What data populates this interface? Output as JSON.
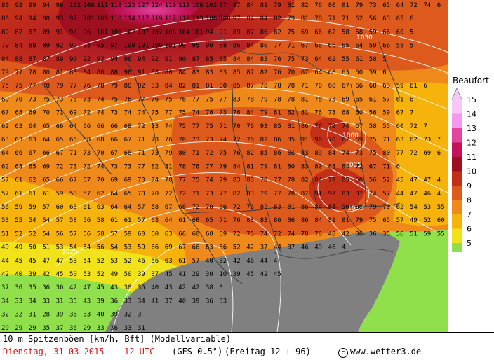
{
  "legend": {
    "title": "Beaufort",
    "levels": [
      {
        "label": "15",
        "color": "#f7c8f7"
      },
      {
        "label": "14",
        "color": "#f29aee"
      },
      {
        "label": "13",
        "color": "#e2449e"
      },
      {
        "label": "12",
        "color": "#c4125a"
      },
      {
        "label": "11",
        "color": "#9e1020"
      },
      {
        "label": "10",
        "color": "#c42f18"
      },
      {
        "label": "9",
        "color": "#dd5a1c"
      },
      {
        "label": "8",
        "color": "#ef8a1a"
      },
      {
        "label": "7",
        "color": "#f6b30c"
      },
      {
        "label": "6",
        "color": "#f2e21a"
      },
      {
        "label": "5",
        "color": "#8fe04a"
      },
      {
        "label": "",
        "color": "#808080"
      }
    ]
  },
  "footer": {
    "title": "10 m Spitzenböen [km/h, Bft] (Modellvariable)",
    "date": "Dienstag, 31-03-2015",
    "time": "12 UTC",
    "model": "(GFS 0.5°)",
    "run": "(Freitag 12 + 96)",
    "copyright_symbol": "c",
    "credit": "www.wetter3.de"
  },
  "contour_labels": [
    "1000",
    "1005",
    "1010",
    "1025",
    "1030"
  ],
  "grid_values": [
    "80 93 99 94 99 102 108 111 118 123 127 124 119 112 106 103 87 87 84 81 79 81 82 76 80 81 79 73 65 64 72 74 6",
    "86 94 94 90 93 97 101 106 110 114 117 119 117 116 113 106 100 97 84 84 82 79 81 78 71 71 62 56 63 65 6",
    "89 87 87 89 91 93 96 101 106 107 107 107 106 104 101 94 91 89 87 86 82 75 69 66 62 58 58 59 66 60 5",
    "79 84 88 89 92 92 93 95 97 100 101 100 101 99 95 90 88 86 84 80 77 71 67 68 66 65 64 59 66 58 5",
    "84 88 87 87 89 90 92 92 94 96 94 92 91 90 87 85 85 84 84 83 76 75 73 64 62 55 61 58 5",
    "79 77 78 80 81 83 84 86 88 90 91 88 86 84 83 83 83 85 87 82 76 70 67 64 68 63 60 59 6",
    "75 75 77 78 79 77 76 78 79 80 82 83 84 82 81 81 80 85 87 78 78 78 71 70 68 67 66 68 63 59 61 6",
    "69 70 73 75 73 73 73 74 75 78 77 76 75 76 77 75 77 83 78 79 78 78 81 78 73 69 65 61 57 61 6",
    "67 68 69 70 71 69 72 74 73 74 74 75 77 75 74 76 73 76 84 79 81 82 81 76 73 68 60 56 59 67 7",
    "62 63 64 65 66 64 66 66 66 68 72 73 74 75 77 75 71 70 76 93 85 81 86 76 72 74 67 58 55 60 72 7",
    "63 63 63 64 65 66 68 68 66 67 71 73 76 76 73 73 74 72 76 82 86 85 91 96 70 67 69 75 71 63 62 73 7",
    "64 66 67 66 67 71 73 70 67 68 71 73 79 80 71 72 75 76 82 85 86 86 83 89 84 74 73 75 80 77 72 69 6",
    "62 63 65 69 72 73 72 74 73 73 77 82 81 78 76 77 79 84 81 79 81 80 83 80 83 84 72 67 71 6",
    "57 61 62 65 66 67 67 70 69 69 73 74 78 77 75 74 79 83 83 78 77 78 82 84 79 85 60 56 52 45 47 47 4",
    "57 61 61 61 59 58 57 62 64 65 70 70 72 72 71 73 77 82 83 79 77 78 87 91 97 83 87 74 57 44 47 46 4",
    "56 59 59 57 60 63 61 63 64 64 57 58 67 68 72 70 66 72 76 82 83 81 86 84 85 90 88 79 70 62 54 53 55 51 5",
    "53 55 54 54 57 58 56 58 61 61 57 63 64 61 68 65 71 76 83 83 86 86 86 84 81 81 79 75 65 57 49 52 60 62 5",
    "51 52 52 54 56 57 56 58 57 59 60 60 63 66 68 68 69 72 75 74 72 74 78 76 48 42 36 36 35 56 51 59 55 5",
    "49 49 50 51 53 54 54 56 54 53 59 66 69 67 66 63 56 52 42 37 44 37 46 49 46 4",
    "44 45 45 47 47 53 54 52 53 52 46 56 63 61 57 40 32 42 46 44 4",
    "42 40 39 42 45 50 53 52 49 50 39 37 45 41 29 30 10 39 45 42 45",
    "37 36 35 36 36 42 47 45 43 38 35 40 43 42 42 38 3",
    "34 33 34 33 31 35 43 39 36 33 34 41 37 40 39 36 33",
    "32 32 31 28 39 36 33 40 39 32 3",
    "29 29 29 35 37 36 29 33 36 33 31"
  ]
}
